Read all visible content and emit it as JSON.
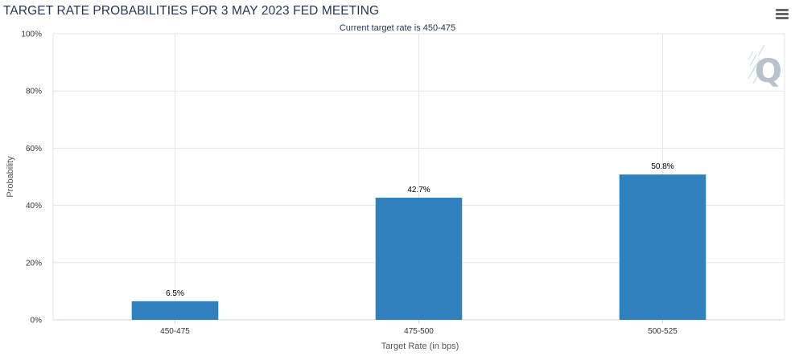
{
  "header": {
    "title": "TARGET RATE PROBABILITIES FOR 3 MAY 2023 FED MEETING",
    "menu_icon": "hamburger-menu-icon"
  },
  "watermark": {
    "letter": "Q",
    "icon": "quikstrike-logo-icon"
  },
  "chart_data": {
    "type": "bar",
    "title": "TARGET RATE PROBABILITIES FOR 3 MAY 2023 FED MEETING",
    "subtitle": "Current target rate is 450-475",
    "xlabel": "Target Rate (in bps)",
    "ylabel": "Probability",
    "categories": [
      "450-475",
      "475-500",
      "500-525"
    ],
    "values": [
      6.5,
      42.7,
      50.8
    ],
    "data_labels": [
      "6.5%",
      "42.7%",
      "50.8%"
    ],
    "ylim": [
      0,
      100
    ],
    "yticks": [
      0,
      20,
      40,
      60,
      80,
      100
    ],
    "ytick_labels": [
      "0%",
      "20%",
      "40%",
      "60%",
      "80%",
      "100%"
    ],
    "grid": true,
    "bar_color": "#2f80bd"
  }
}
